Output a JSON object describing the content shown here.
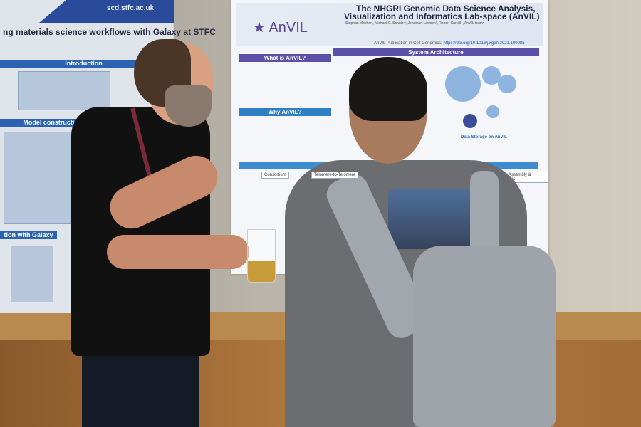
{
  "scene": {
    "description_type": "photo"
  },
  "poster_left": {
    "url": "scd.stfc.ac.uk",
    "title": "ng materials science workflows with Galaxy at STFC",
    "sections": [
      "Introduction",
      "Model construction in vEPAC",
      "tion with Galaxy"
    ]
  },
  "poster_main": {
    "logo": "AnVIL",
    "title_line1": "The NHGRI Genomic Data Science Analysis,",
    "title_line2": "Visualization and Informatics Lab-space (AnVIL)",
    "authors": "Stephan Mosher¹, Michael C. Schatz¹², Jonathan Lawson³, Robert Carroll⁴, AnVIL team⁵",
    "publication_label": "AnVIL Publication in Cell Genomics:",
    "publication_link": "https://doi.org/10.1016/j.xgen.2021.100085",
    "sections": {
      "what": "What is AnVIL?",
      "system": "System Architecture",
      "why": "Why AnVIL?",
      "storage": "Data Storage on AnVIL",
      "consortium": "Consortium",
      "telomere": "Telomere-to-Telomere",
      "assembly": "ome Assembly & Analysis"
    }
  },
  "colors": {
    "poster_purple": "#5a50a8",
    "poster_blue": "#2f7fc2",
    "wood": "#b27a3f",
    "wall": "#c9c3b6"
  }
}
